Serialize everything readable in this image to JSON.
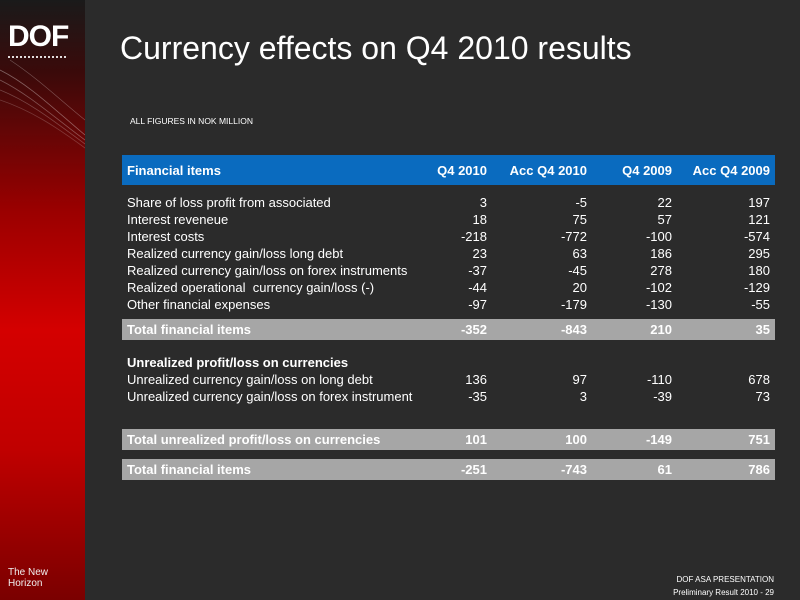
{
  "logo": {
    "text": "DOF"
  },
  "tagline": "The New Horizon",
  "title": "Currency effects on Q4 2010 results",
  "units_note": "ALL FIGURES IN NOK MILLION",
  "table": {
    "headers": [
      "Financial items",
      "Q4 2010",
      "Acc Q4 2010",
      "Q4 2009",
      "Acc Q4 2009"
    ],
    "rows": [
      [
        "Share of loss profit from associated",
        "3",
        "-5",
        "22",
        "197"
      ],
      [
        "Interest reveneue",
        "18",
        "75",
        "57",
        "121"
      ],
      [
        "Interest costs",
        "-218",
        "-772",
        "-100",
        "-574"
      ],
      [
        "Realized currency gain/loss long debt",
        "23",
        "63",
        "186",
        "295"
      ],
      [
        "Realized currency gain/loss on forex instruments",
        "-37",
        "-45",
        "278",
        "180"
      ],
      [
        "Realized operational  currency gain/loss (-)",
        "-44",
        "20",
        "-102",
        "-129"
      ],
      [
        "Other financial expenses",
        "-97",
        "-179",
        "-130",
        "-55"
      ]
    ],
    "total_financial": [
      "Total financial items",
      "-352",
      "-843",
      "210",
      "35"
    ],
    "unrealized_heading": "Unrealized profit/loss on currencies",
    "unrealized_rows": [
      [
        "Unrealized currency gain/loss on long debt",
        "136",
        "97",
        "-110",
        "678"
      ],
      [
        "Unrealized currency gain/loss on forex instrument",
        "-35",
        "3",
        "-39",
        "73"
      ]
    ],
    "total_unrealized": [
      "Total unrealized profit/loss on currencies",
      "101",
      "100",
      "-149",
      "751"
    ],
    "grand_total": [
      "Total financial items",
      "-251",
      "-743",
      "61",
      "786"
    ]
  },
  "footer": {
    "line1": "DOF ASA PRESENTATION",
    "line2": "Preliminary Result 2010 - 29"
  },
  "colors": {
    "header_blue": "#0a6bbf",
    "total_gray": "#a6a6a6",
    "background": "#2b2b2b",
    "sidebar_red": "#d40000"
  }
}
